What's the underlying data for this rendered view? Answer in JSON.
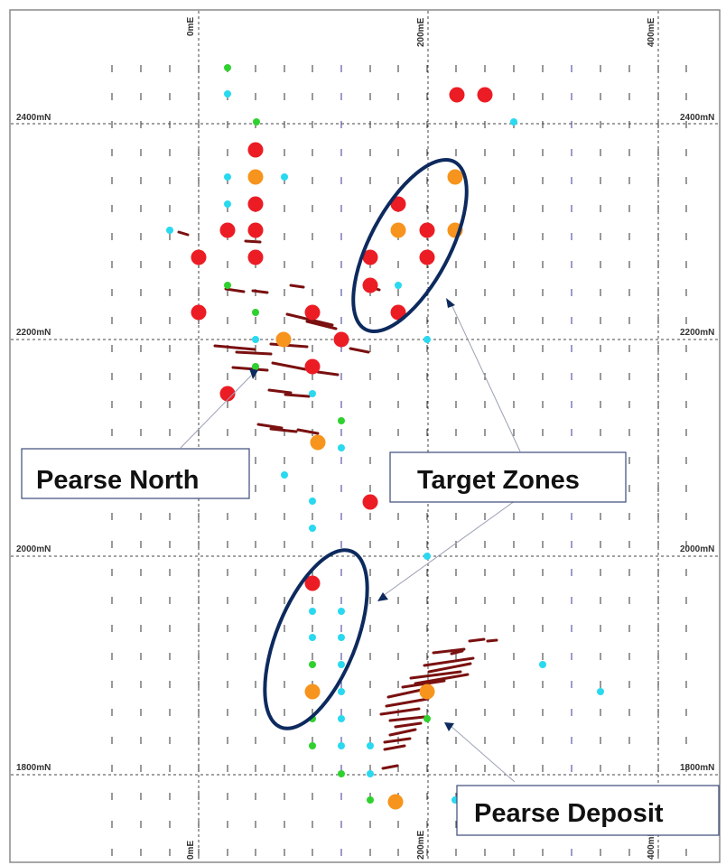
{
  "grid": {
    "easting_labels": [
      "0mE",
      "200mE",
      "400mE"
    ],
    "northing_labels": [
      "2400mN",
      "2200mN",
      "2000mN",
      "1800mN"
    ],
    "line_color": "#444444"
  },
  "colors": {
    "red": "#ec1c24",
    "orange": "#f7941d",
    "cyan": "#29d9f0",
    "green": "#2fd12f",
    "ellipse": "#0d2a5e",
    "callout_border": "#3b4a7a",
    "trace": "#7a1010"
  },
  "callouts": [
    {
      "id": "pearse-north",
      "label": "Pearse North"
    },
    {
      "id": "target-zones",
      "label": "Target Zones"
    },
    {
      "id": "pearse-deposit",
      "label": "Pearse Deposit"
    }
  ]
}
